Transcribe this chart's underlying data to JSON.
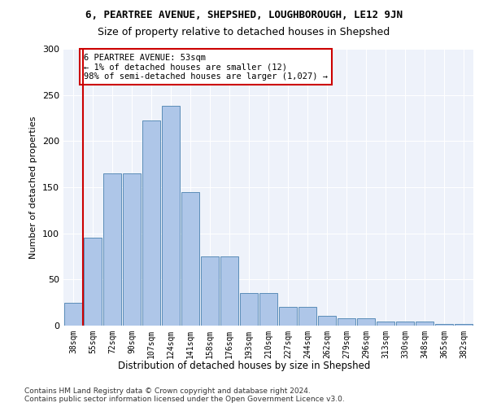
{
  "title1": "6, PEARTREE AVENUE, SHEPSHED, LOUGHBOROUGH, LE12 9JN",
  "title2": "Size of property relative to detached houses in Shepshed",
  "xlabel": "Distribution of detached houses by size in Shepshed",
  "ylabel": "Number of detached properties",
  "categories": [
    "38sqm",
    "55sqm",
    "72sqm",
    "90sqm",
    "107sqm",
    "124sqm",
    "141sqm",
    "158sqm",
    "176sqm",
    "193sqm",
    "210sqm",
    "227sqm",
    "244sqm",
    "262sqm",
    "279sqm",
    "296sqm",
    "313sqm",
    "330sqm",
    "348sqm",
    "365sqm",
    "382sqm"
  ],
  "bar_values": [
    25,
    95,
    165,
    165,
    222,
    238,
    145,
    75,
    75,
    35,
    35,
    20,
    20,
    11,
    8,
    8,
    4,
    4,
    4,
    2,
    2
  ],
  "bar_color": "#aec6e8",
  "bar_edge_color": "#5b8db8",
  "highlight_color": "#cc0000",
  "annotation_text": "6 PEARTREE AVENUE: 53sqm\n← 1% of detached houses are smaller (12)\n98% of semi-detached houses are larger (1,027) →",
  "annotation_box_color": "#ffffff",
  "annotation_box_edge": "#cc0000",
  "footer": "Contains HM Land Registry data © Crown copyright and database right 2024.\nContains public sector information licensed under the Open Government Licence v3.0.",
  "ylim": [
    0,
    300
  ],
  "background_color": "#eef2fa"
}
